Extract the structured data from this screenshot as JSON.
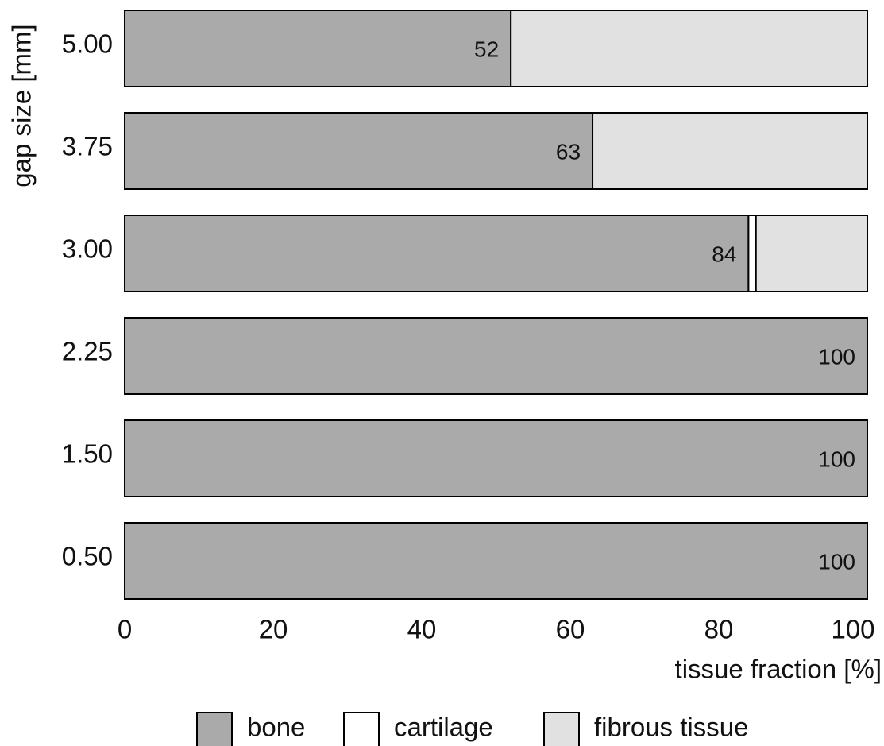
{
  "chart_data": {
    "type": "stacked-barh",
    "categories": [
      "5.00",
      "3.75",
      "3.00",
      "2.25",
      "1.50",
      "0.50"
    ],
    "series": [
      {
        "name": "bone",
        "color": "#aaaaaa",
        "values": [
          52,
          63,
          84,
          100,
          100,
          100
        ]
      },
      {
        "name": "cartilage",
        "color": "#ffffff",
        "values": [
          0,
          0,
          1,
          0,
          0,
          0
        ]
      },
      {
        "name": "fibrous tissue",
        "color": "#e1e1e1",
        "values": [
          48,
          37,
          15,
          0,
          0,
          0
        ]
      }
    ],
    "xlim": [
      0,
      100
    ],
    "xticks": [
      0,
      20,
      40,
      60,
      80,
      100
    ],
    "xlabel": "tissue fraction [%]",
    "ylabel": "gap size [mm]",
    "legend": "bottom"
  }
}
